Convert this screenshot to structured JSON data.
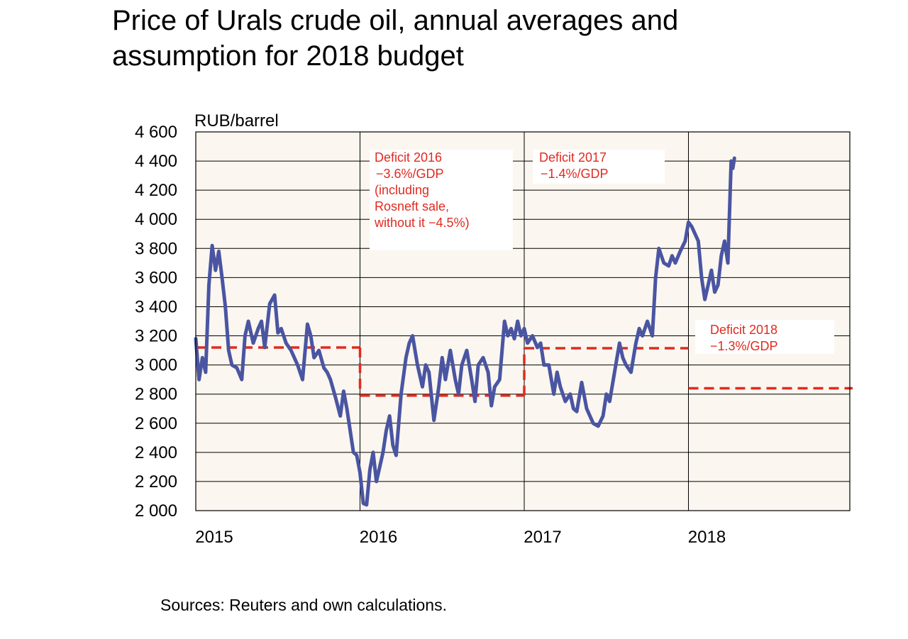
{
  "chart_data": {
    "type": "line",
    "title": "Price of Urals crude oil, annual averages and\nassumption for 2018 budget",
    "ylabel": "RUB/barrel",
    "xlabel": "",
    "ylim": [
      2000,
      4600
    ],
    "yticks": [
      2000,
      2200,
      2400,
      2600,
      2800,
      3000,
      3200,
      3400,
      3600,
      3800,
      4000,
      4200,
      4400,
      4600
    ],
    "ytick_labels": [
      "2 000",
      "2 200",
      "2 400",
      "2 600",
      "2 800",
      "3 000",
      "3 200",
      "3 400",
      "3 600",
      "3 800",
      "4 000",
      "4 200",
      "4 400",
      "4 600"
    ],
    "xlim": [
      2015.0,
      2019.0
    ],
    "xticks": [
      2015,
      2016,
      2017,
      2018
    ],
    "xtick_labels": [
      "2015",
      "2016",
      "2017",
      "2018"
    ],
    "grid": true,
    "series": [
      {
        "color": "#4a55a2",
        "x": [
          2015.0,
          2015.02,
          2015.04,
          2015.06,
          2015.08,
          2015.1,
          2015.12,
          2015.14,
          2015.16,
          2015.18,
          2015.2,
          2015.22,
          2015.25,
          2015.28,
          2015.3,
          2015.32,
          2015.35,
          2015.38,
          2015.4,
          2015.42,
          2015.45,
          2015.48,
          2015.5,
          2015.52,
          2015.55,
          2015.58,
          2015.6,
          2015.62,
          2015.65,
          2015.68,
          2015.7,
          2015.72,
          2015.75,
          2015.78,
          2015.8,
          2015.82,
          2015.85,
          2015.88,
          2015.9,
          2015.92,
          2015.94,
          2015.96,
          2015.98,
          2016.0,
          2016.02,
          2016.04,
          2016.06,
          2016.08,
          2016.1,
          2016.12,
          2016.14,
          2016.16,
          2016.18,
          2016.2,
          2016.22,
          2016.25,
          2016.28,
          2016.3,
          2016.32,
          2016.35,
          2016.38,
          2016.4,
          2016.42,
          2016.45,
          2016.48,
          2016.5,
          2016.52,
          2016.55,
          2016.58,
          2016.6,
          2016.62,
          2016.65,
          2016.68,
          2016.7,
          2016.72,
          2016.75,
          2016.78,
          2016.8,
          2016.82,
          2016.85,
          2016.88,
          2016.9,
          2016.92,
          2016.94,
          2016.96,
          2016.98,
          2017.0,
          2017.02,
          2017.05,
          2017.08,
          2017.1,
          2017.12,
          2017.15,
          2017.18,
          2017.2,
          2017.22,
          2017.25,
          2017.28,
          2017.3,
          2017.32,
          2017.35,
          2017.38,
          2017.4,
          2017.42,
          2017.45,
          2017.48,
          2017.5,
          2017.52,
          2017.55,
          2017.58,
          2017.6,
          2017.62,
          2017.65,
          2017.68,
          2017.7,
          2017.72,
          2017.75,
          2017.78,
          2017.8,
          2017.82,
          2017.85,
          2017.88,
          2017.9,
          2017.92,
          2017.95,
          2017.98,
          2018.0,
          2018.02,
          2018.04,
          2018.06,
          2018.08,
          2018.1,
          2018.12,
          2018.14,
          2018.16,
          2018.18,
          2018.2,
          2018.22,
          2018.24,
          2018.26,
          2018.27,
          2018.28
        ],
        "values": [
          3180,
          2900,
          3050,
          2950,
          3550,
          3820,
          3650,
          3780,
          3600,
          3400,
          3100,
          3000,
          2980,
          2900,
          3200,
          3300,
          3150,
          3250,
          3300,
          3120,
          3420,
          3480,
          3220,
          3250,
          3150,
          3100,
          3050,
          3000,
          2900,
          3280,
          3200,
          3050,
          3100,
          2980,
          2950,
          2900,
          2780,
          2650,
          2820,
          2700,
          2550,
          2400,
          2380,
          2260,
          2050,
          2040,
          2280,
          2400,
          2200,
          2300,
          2400,
          2550,
          2650,
          2450,
          2380,
          2800,
          3050,
          3150,
          3200,
          3000,
          2850,
          3000,
          2950,
          2620,
          2850,
          3050,
          2900,
          3100,
          2900,
          2800,
          3000,
          3100,
          2900,
          2750,
          3000,
          3050,
          2950,
          2720,
          2850,
          2900,
          3300,
          3200,
          3250,
          3180,
          3300,
          3200,
          3250,
          3150,
          3200,
          3120,
          3150,
          3000,
          3000,
          2800,
          2950,
          2850,
          2750,
          2800,
          2700,
          2680,
          2880,
          2700,
          2650,
          2600,
          2580,
          2650,
          2800,
          2750,
          2950,
          3150,
          3050,
          3000,
          2950,
          3150,
          3250,
          3200,
          3300,
          3200,
          3600,
          3800,
          3700,
          3680,
          3750,
          3700,
          3780,
          3850,
          3980,
          3950,
          3900,
          3850,
          3600,
          3450,
          3550,
          3650,
          3500,
          3550,
          3750,
          3850,
          3700,
          4400,
          4350,
          4420
        ]
      }
    ],
    "budget_lines": [
      {
        "x_start": 2015.0,
        "x_end": 2016.0,
        "value": 3120
      },
      {
        "x_start": 2016.0,
        "x_end": 2017.0,
        "value": 2790
      },
      {
        "x_start": 2017.0,
        "x_end": 2018.0,
        "value": 3115
      },
      {
        "x_start": 2018.0,
        "x_end": 2019.0,
        "value": 2840
      }
    ],
    "annotations": [
      {
        "lines": [
          "Deficit 2016",
          "−3.6%/GDP",
          "(including",
          "Rosneft sale,",
          "without it −4.5%)"
        ]
      },
      {
        "lines": [
          "Deficit 2017",
          "−1.4%/GDP"
        ]
      },
      {
        "lines": [
          "Deficit 2018",
          "−1.3%/GDP"
        ]
      }
    ],
    "colors": {
      "plot_bg": "#fbf6ef",
      "line": "#4a55a2",
      "budget": "#e02b20",
      "annotation": "#e02b20",
      "grid": "#000000"
    }
  },
  "footer": {
    "source": "Sources: Reuters and own calculations."
  }
}
